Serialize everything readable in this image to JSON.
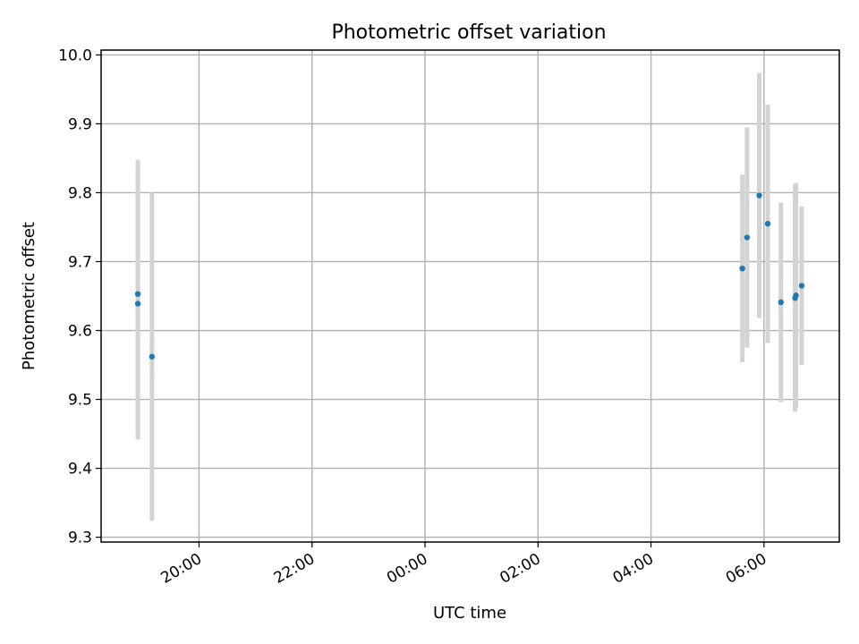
{
  "chart_data": {
    "type": "scatter",
    "title": "Photometric offset variation",
    "xlabel": "UTC time",
    "ylabel": "Photometric offset",
    "x_axis": {
      "kind": "time",
      "range": [
        "18:16",
        "07:20"
      ],
      "ticks": [
        "20:00",
        "22:00",
        "00:00",
        "02:00",
        "04:00",
        "06:00"
      ]
    },
    "y_axis": {
      "range": [
        9.293,
        10.007
      ],
      "ticks": [
        "9.3",
        "9.4",
        "9.5",
        "9.6",
        "9.7",
        "9.8",
        "9.9",
        "10.0"
      ]
    },
    "grid": true,
    "colors": {
      "marker": "#1f77b4",
      "errorbar": "#d3d3d3",
      "grid": "#b0b0b0"
    },
    "points": [
      {
        "t": "18:55",
        "y": 9.653,
        "err": 0.195
      },
      {
        "t": "18:55",
        "y": 9.639,
        "err": 0.197
      },
      {
        "t": "19:10",
        "y": 9.562,
        "err": 0.238
      },
      {
        "t": "05:37",
        "y": 9.69,
        "err": 0.136
      },
      {
        "t": "05:42",
        "y": 9.735,
        "err": 0.16
      },
      {
        "t": "05:55",
        "y": 9.796,
        "err": 0.178
      },
      {
        "t": "06:04",
        "y": 9.755,
        "err": 0.173
      },
      {
        "t": "06:18",
        "y": 9.641,
        "err": 0.145
      },
      {
        "t": "06:33",
        "y": 9.647,
        "err": 0.165
      },
      {
        "t": "06:34",
        "y": 9.651,
        "err": 0.163
      },
      {
        "t": "06:40",
        "y": 9.665,
        "err": 0.115
      }
    ]
  }
}
